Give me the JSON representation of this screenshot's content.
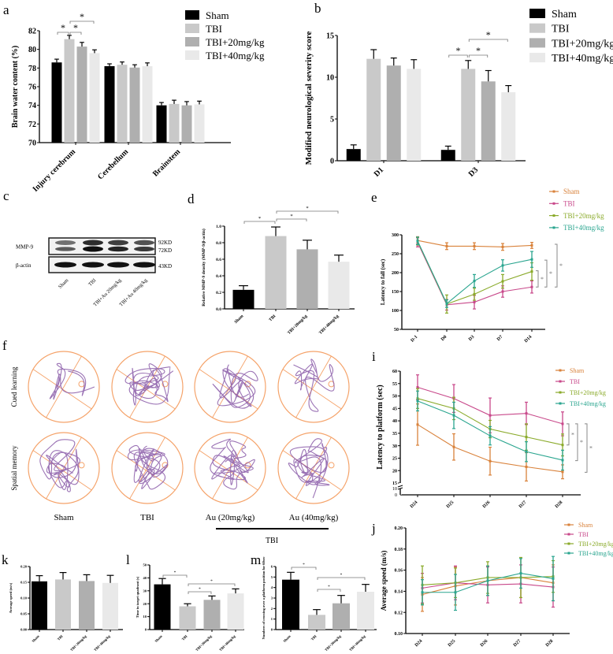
{
  "colors": {
    "bar": [
      "#000000",
      "#c9c9c9",
      "#afafaf",
      "#e9e9e9"
    ],
    "line": [
      "#d9823b",
      "#c8488a",
      "#8aaa2a",
      "#2aa58f"
    ],
    "maze_ring": "#f5a36a",
    "maze_path": "#8a5aa8"
  },
  "groups": [
    "Sham",
    "TBI",
    "TBI+20mg/kg",
    "TBI+40mg/kg"
  ],
  "panels": {
    "a": "a",
    "b": "b",
    "c": "c",
    "d": "d",
    "e": "e",
    "f": "f",
    "i": "i",
    "j": "j",
    "k": "k",
    "l": "l",
    "m": "m"
  },
  "blot": {
    "rows": [
      {
        "label": "MMP-9",
        "sizes": [
          "92KD",
          "72KD"
        ]
      },
      {
        "label": "β-actin",
        "sizes": [
          "43KD"
        ]
      }
    ],
    "lanes": [
      "Sham",
      "TBI",
      "TBI+Au 20mg/kg",
      "TBI+Au 40mg/kg"
    ]
  },
  "maze": {
    "rows": [
      "Cued learning",
      "Spatial memory"
    ],
    "columns": [
      "Sham",
      "TBI",
      "Au (20mg/kg)",
      "Au (40mg/kg)"
    ],
    "group_bracket_label": "TBI"
  },
  "chart_data": [
    {
      "id": "a",
      "type": "bar",
      "ylabel": "Brain water content (%)",
      "categories": [
        "Injury cerebrum",
        "Cerebellum",
        "Brainstem"
      ],
      "ylim": [
        70,
        82
      ],
      "yticks": [
        70,
        72,
        74,
        76,
        78,
        80,
        82
      ],
      "legend": "top-right",
      "series": [
        {
          "name": "Sham",
          "values": [
            78.6,
            78.2,
            74.0
          ],
          "errors": [
            0.35,
            0.25,
            0.3
          ]
        },
        {
          "name": "TBI",
          "values": [
            81.1,
            78.35,
            74.15
          ],
          "errors": [
            0.4,
            0.3,
            0.4
          ]
        },
        {
          "name": "TBI+20mg/kg",
          "values": [
            80.3,
            78.05,
            74.0
          ],
          "errors": [
            0.45,
            0.3,
            0.4
          ]
        },
        {
          "name": "TBI+40mg/kg",
          "values": [
            79.6,
            78.2,
            74.1
          ],
          "errors": [
            0.35,
            0.35,
            0.35
          ]
        }
      ],
      "significance": [
        {
          "category": 0,
          "from": 0,
          "to": 1,
          "label": "*"
        },
        {
          "category": 0,
          "from": 1,
          "to": 2,
          "label": "*"
        },
        {
          "category": 0,
          "from": 1,
          "to": 3,
          "label": "*"
        }
      ]
    },
    {
      "id": "b",
      "type": "bar",
      "ylabel": "Modified neurological severity score",
      "categories": [
        "D1",
        "D3"
      ],
      "ylim": [
        0,
        15
      ],
      "yticks": [
        0,
        5,
        10,
        15
      ],
      "legend": "top-right",
      "series": [
        {
          "name": "Sham",
          "values": [
            1.4,
            1.3
          ],
          "errors": [
            0.5,
            0.45
          ]
        },
        {
          "name": "TBI",
          "values": [
            12.2,
            11.0
          ],
          "errors": [
            1.1,
            1.0
          ]
        },
        {
          "name": "TBI+20mg/kg",
          "values": [
            11.4,
            9.5
          ],
          "errors": [
            0.9,
            1.3
          ]
        },
        {
          "name": "TBI+40mg/kg",
          "values": [
            11.0,
            8.2
          ],
          "errors": [
            1.1,
            0.8
          ]
        }
      ],
      "significance": [
        {
          "category": 1,
          "from": 0,
          "to": 1,
          "label": "*"
        },
        {
          "category": 1,
          "from": 1,
          "to": 2,
          "label": "*"
        },
        {
          "category": 1,
          "from": 1,
          "to": 3,
          "label": "*"
        }
      ]
    },
    {
      "id": "d",
      "type": "bar",
      "ylabel": "Relative MMP-9 density (MMP-9/β-actin)",
      "categories": [
        "Sham",
        "TBI",
        "TBI+20mg/kg",
        "TBI+40mg/kg"
      ],
      "ylim": [
        0,
        1.0
      ],
      "yticks": [
        0,
        0.2,
        0.4,
        0.6,
        0.8,
        1.0
      ],
      "tickfmt": 1,
      "values": [
        0.23,
        0.88,
        0.72,
        0.57
      ],
      "errors": [
        0.05,
        0.11,
        0.11,
        0.08
      ],
      "significance": [
        {
          "from": 0,
          "to": 1,
          "label": "*"
        },
        {
          "from": 1,
          "to": 2,
          "label": "*"
        },
        {
          "from": 1,
          "to": 3,
          "label": "*"
        }
      ]
    },
    {
      "id": "e",
      "type": "line",
      "ylabel": "Latency to fall (sec)",
      "x": [
        "D-1",
        "D0",
        "D3",
        "D7",
        "D14"
      ],
      "ylim": [
        50,
        300
      ],
      "yticks": [
        50,
        100,
        150,
        200,
        250,
        300
      ],
      "legend": "top-right",
      "series": [
        {
          "name": "Sham",
          "values": [
            285,
            270,
            270,
            268,
            272
          ],
          "errors": [
            10,
            9,
            9,
            9,
            8
          ]
        },
        {
          "name": "TBI",
          "values": [
            280,
            115,
            122,
            150,
            162
          ],
          "errors": [
            12,
            14,
            18,
            15,
            16
          ]
        },
        {
          "name": "TBI+20mg/kg",
          "values": [
            283,
            117,
            143,
            177,
            203
          ],
          "errors": [
            10,
            24,
            16,
            18,
            23
          ]
        },
        {
          "name": "TBI+40mg/kg",
          "values": [
            284,
            118,
            178,
            219,
            235
          ],
          "errors": [
            10,
            10,
            17,
            15,
            21
          ]
        }
      ],
      "significance": [
        {
          "from_value": 162,
          "to_value": 205,
          "label": "*"
        },
        {
          "from_value": 162,
          "to_value": 233,
          "label": "*"
        },
        {
          "from_value": 162,
          "to_value": 275,
          "label": "*"
        }
      ]
    },
    {
      "id": "i",
      "type": "line",
      "ylabel": "Latency to platform (sec)",
      "x": [
        "D24",
        "D25",
        "D26",
        "D27",
        "D28"
      ],
      "ylim": [
        15,
        60
      ],
      "yticks": [
        15,
        20,
        25,
        30,
        35,
        40,
        45,
        50,
        55,
        60
      ],
      "axis_break": [
        "10",
        "0"
      ],
      "legend": "top-right",
      "series": [
        {
          "name": "Sham",
          "values": [
            38.5,
            29.5,
            23.8,
            21.5,
            19.5
          ],
          "errors": [
            8.3,
            5.3,
            5.6,
            5.7,
            2.8
          ]
        },
        {
          "name": "TBI",
          "values": [
            53.5,
            49,
            42.2,
            43,
            38.8
          ],
          "errors": [
            5,
            5.6,
            7,
            4.5,
            4.8
          ]
        },
        {
          "name": "TBI+20mg/kg",
          "values": [
            49,
            45,
            36.7,
            33.5,
            30.3
          ],
          "errors": [
            4,
            4.5,
            3.5,
            5.3,
            4.4
          ]
        },
        {
          "name": "TBI+40mg/kg",
          "values": [
            48,
            42.2,
            34,
            27.6,
            24.2
          ],
          "errors": [
            4,
            5.3,
            3.7,
            4,
            4
          ]
        }
      ],
      "significance": [
        {
          "from_value": 30.3,
          "to_value": 38.8,
          "label": "*"
        },
        {
          "from_value": 24,
          "to_value": 38.8,
          "label": "*"
        },
        {
          "from_value": 19.3,
          "to_value": 38.8,
          "label": "*"
        }
      ]
    },
    {
      "id": "j",
      "type": "line",
      "ylabel": "Average speed (m/s)",
      "x": [
        "D24",
        "D25",
        "D26",
        "D27",
        "D28"
      ],
      "ylim": [
        0.1,
        0.2
      ],
      "yticks": [
        0.1,
        0.12,
        0.14,
        0.16,
        0.18,
        0.2
      ],
      "tickfmt": 2,
      "legend": "top-right",
      "series": [
        {
          "name": "Sham",
          "values": [
            0.137,
            0.145,
            0.15,
            0.153,
            0.148
          ],
          "errors": [
            0.016,
            0.018,
            0.014,
            0.019,
            0.017
          ]
        },
        {
          "name": "TBI",
          "values": [
            0.143,
            0.148,
            0.146,
            0.147,
            0.144
          ],
          "errors": [
            0.014,
            0.016,
            0.017,
            0.018,
            0.019
          ]
        },
        {
          "name": "TBI+20mg/kg",
          "values": [
            0.146,
            0.148,
            0.153,
            0.153,
            0.154
          ],
          "errors": [
            0.018,
            0.014,
            0.015,
            0.019,
            0.015
          ]
        },
        {
          "name": "TBI+40mg/kg",
          "values": [
            0.139,
            0.139,
            0.15,
            0.157,
            0.152
          ],
          "errors": [
            0.012,
            0.017,
            0.014,
            0.014,
            0.021
          ]
        }
      ]
    },
    {
      "id": "k",
      "type": "bar",
      "ylabel": "Average speed (m/s)",
      "categories": [
        "Sham",
        "TBI",
        "TBI+20mg/kg",
        "TBI+40mg/kg"
      ],
      "ylim": [
        0,
        0.2
      ],
      "yticks": [
        0,
        0.05,
        0.1,
        0.15,
        0.2
      ],
      "tickfmt": 2,
      "values": [
        0.153,
        0.159,
        0.154,
        0.148
      ],
      "errors": [
        0.018,
        0.022,
        0.02,
        0.024
      ]
    },
    {
      "id": "l",
      "type": "bar",
      "ylabel": "Time in target quadrant (s)",
      "categories": [
        "Sham",
        "TBI",
        "TBI+20mg/kg",
        "TBI+40mg/kg"
      ],
      "ylim": [
        0,
        50
      ],
      "yticks": [
        0,
        10,
        20,
        30,
        40,
        50
      ],
      "values": [
        35,
        18,
        23,
        28
      ],
      "errors": [
        4.5,
        2,
        3,
        3.5
      ],
      "significance": [
        {
          "from": 0,
          "to": 1,
          "label": "*"
        },
        {
          "from": 1,
          "to": 2,
          "label": "*"
        },
        {
          "from": 1,
          "to": 3,
          "label": "*"
        }
      ]
    },
    {
      "id": "m",
      "type": "bar",
      "ylabel": "Numbers of crossing over a platform position for 60sec",
      "categories": [
        "Sham",
        "TBI",
        "TBI+20mg/kg",
        "TBI+40mg/kg"
      ],
      "ylim": [
        0,
        6
      ],
      "yticks": [
        0,
        1,
        2,
        3,
        4,
        5,
        6
      ],
      "values": [
        4.75,
        1.4,
        2.5,
        3.6
      ],
      "errors": [
        0.7,
        0.5,
        0.75,
        0.7
      ],
      "significance": [
        {
          "from": 0,
          "to": 1,
          "label": "*"
        },
        {
          "from": 1,
          "to": 2,
          "label": "*"
        },
        {
          "from": 1,
          "to": 3,
          "label": "*"
        }
      ]
    }
  ]
}
